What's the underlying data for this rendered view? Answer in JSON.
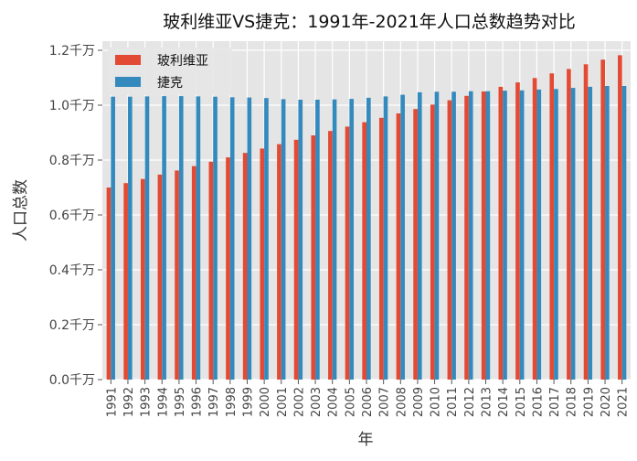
{
  "chart_data": {
    "type": "bar",
    "title": "玻利维亚VS捷克：1991年-2021年人口总数趋势对比",
    "xlabel": "年",
    "ylabel": "人口总数",
    "ylim": [
      0,
      1.2
    ],
    "yticks": [
      "0.0千万",
      "0.2千万",
      "0.4千万",
      "0.6千万",
      "0.8千万",
      "1.0千万",
      "1.2千万"
    ],
    "grid": true,
    "legend_position": "top-left",
    "categories": [
      "1991",
      "1992",
      "1993",
      "1994",
      "1995",
      "1996",
      "1997",
      "1998",
      "1999",
      "2000",
      "2001",
      "2002",
      "2003",
      "2004",
      "2005",
      "2006",
      "2007",
      "2008",
      "2009",
      "2010",
      "2011",
      "2012",
      "2013",
      "2014",
      "2015",
      "2016",
      "2017",
      "2018",
      "2019",
      "2020",
      "2021"
    ],
    "series": [
      {
        "name": "玻利维亚",
        "color": "#e24a33",
        "values": [
          0.7,
          0.716,
          0.731,
          0.747,
          0.762,
          0.778,
          0.794,
          0.81,
          0.826,
          0.842,
          0.858,
          0.874,
          0.89,
          0.906,
          0.922,
          0.938,
          0.954,
          0.97,
          0.986,
          1.002,
          1.018,
          1.034,
          1.05,
          1.067,
          1.083,
          1.099,
          1.116,
          1.132,
          1.149,
          1.166,
          1.182
        ]
      },
      {
        "name": "捷克",
        "color": "#348abd",
        "values": [
          1.031,
          1.031,
          1.032,
          1.033,
          1.033,
          1.032,
          1.031,
          1.029,
          1.028,
          1.026,
          1.022,
          1.02,
          1.02,
          1.021,
          1.023,
          1.027,
          1.032,
          1.038,
          1.047,
          1.049,
          1.049,
          1.051,
          1.051,
          1.053,
          1.054,
          1.057,
          1.059,
          1.063,
          1.067,
          1.07,
          1.07
        ]
      }
    ]
  }
}
